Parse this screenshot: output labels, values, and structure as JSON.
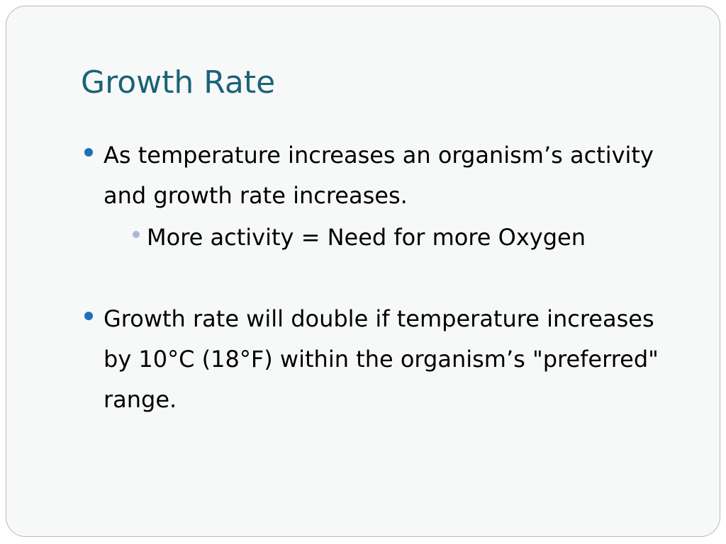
{
  "slide": {
    "title": "Growth Rate",
    "bullets": [
      {
        "text": "As temperature increases an organism’s activity and growth rate increases.",
        "sub_bullets": [
          "More activity = Need for more Oxygen"
        ]
      },
      {
        "text": "Growth rate will double if temperature increases by 10°C (18°F) within the organism’s \"preferred\" range.",
        "sub_bullets": []
      }
    ]
  },
  "colors": {
    "title": "#1a6378",
    "bullet_primary": "#1f6fb8",
    "bullet_secondary": "#a8b8d8",
    "slide_background": "#f7f8f8",
    "border": "#b9b9b9"
  }
}
